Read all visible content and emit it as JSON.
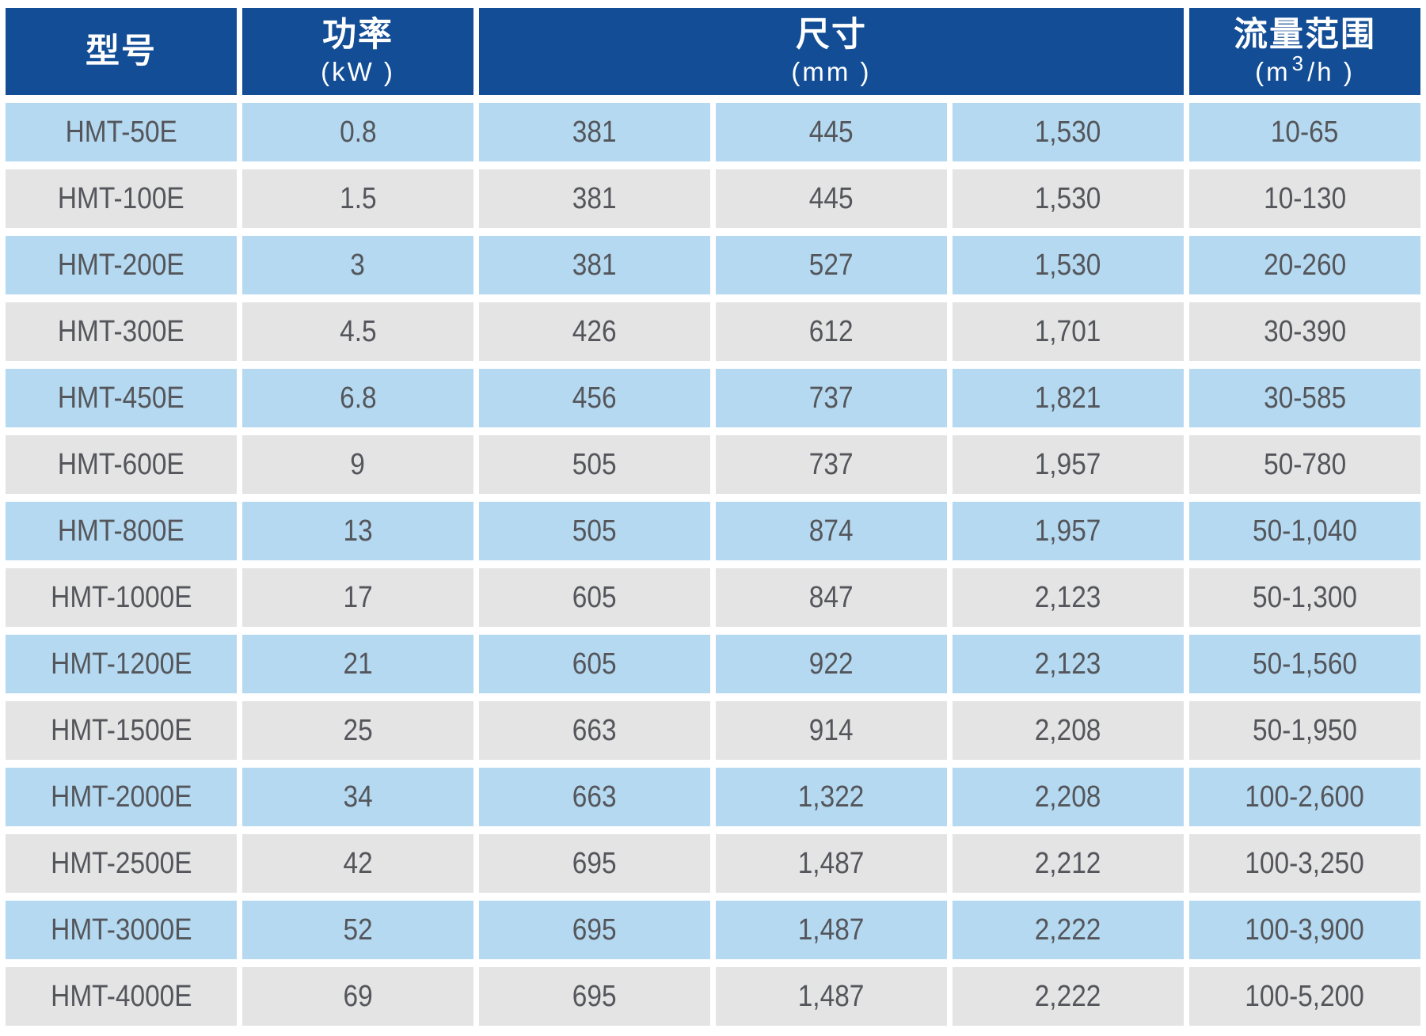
{
  "table": {
    "header": {
      "model": {
        "label": "型号"
      },
      "power": {
        "label": "功率",
        "unit": "(kW )"
      },
      "dimensions": {
        "label": "尺寸",
        "unit": "(mm )"
      },
      "flow": {
        "label": "流量范围",
        "unit_open": "(m",
        "unit_sup": "3",
        "unit_close": "/h )"
      }
    },
    "rows": [
      {
        "model": "HMT-50E",
        "power": "0.8",
        "dim_a": "381",
        "dim_b": "445",
        "dim_c": "1,530",
        "flow": "10-65"
      },
      {
        "model": "HMT-100E",
        "power": "1.5",
        "dim_a": "381",
        "dim_b": "445",
        "dim_c": "1,530",
        "flow": "10-130"
      },
      {
        "model": "HMT-200E",
        "power": "3",
        "dim_a": "381",
        "dim_b": "527",
        "dim_c": "1,530",
        "flow": "20-260"
      },
      {
        "model": "HMT-300E",
        "power": "4.5",
        "dim_a": "426",
        "dim_b": "612",
        "dim_c": "1,701",
        "flow": "30-390"
      },
      {
        "model": "HMT-450E",
        "power": "6.8",
        "dim_a": "456",
        "dim_b": "737",
        "dim_c": "1,821",
        "flow": "30-585"
      },
      {
        "model": "HMT-600E",
        "power": "9",
        "dim_a": "505",
        "dim_b": "737",
        "dim_c": "1,957",
        "flow": "50-780"
      },
      {
        "model": "HMT-800E",
        "power": "13",
        "dim_a": "505",
        "dim_b": "874",
        "dim_c": "1,957",
        "flow": "50-1,040"
      },
      {
        "model": "HMT-1000E",
        "power": "17",
        "dim_a": "605",
        "dim_b": "847",
        "dim_c": "2,123",
        "flow": "50-1,300"
      },
      {
        "model": "HMT-1200E",
        "power": "21",
        "dim_a": "605",
        "dim_b": "922",
        "dim_c": "2,123",
        "flow": "50-1,560"
      },
      {
        "model": "HMT-1500E",
        "power": "25",
        "dim_a": "663",
        "dim_b": "914",
        "dim_c": "2,208",
        "flow": "50-1,950"
      },
      {
        "model": "HMT-2000E",
        "power": "34",
        "dim_a": "663",
        "dim_b": "1,322",
        "dim_c": "2,208",
        "flow": "100-2,600"
      },
      {
        "model": "HMT-2500E",
        "power": "42",
        "dim_a": "695",
        "dim_b": "1,487",
        "dim_c": "2,212",
        "flow": "100-3,250"
      },
      {
        "model": "HMT-3000E",
        "power": "52",
        "dim_a": "695",
        "dim_b": "1,487",
        "dim_c": "2,222",
        "flow": "100-3,900"
      },
      {
        "model": "HMT-4000E",
        "power": "69",
        "dim_a": "695",
        "dim_b": "1,487",
        "dim_c": "2,222",
        "flow": "100-5,200"
      }
    ]
  },
  "colors": {
    "header_background": "#124d96",
    "header_text": "#ffffff",
    "row_blue": "#b5d9f0",
    "row_gray": "#e4e4e4",
    "cell_text": "#54565b",
    "gutter": "#ffffff"
  }
}
